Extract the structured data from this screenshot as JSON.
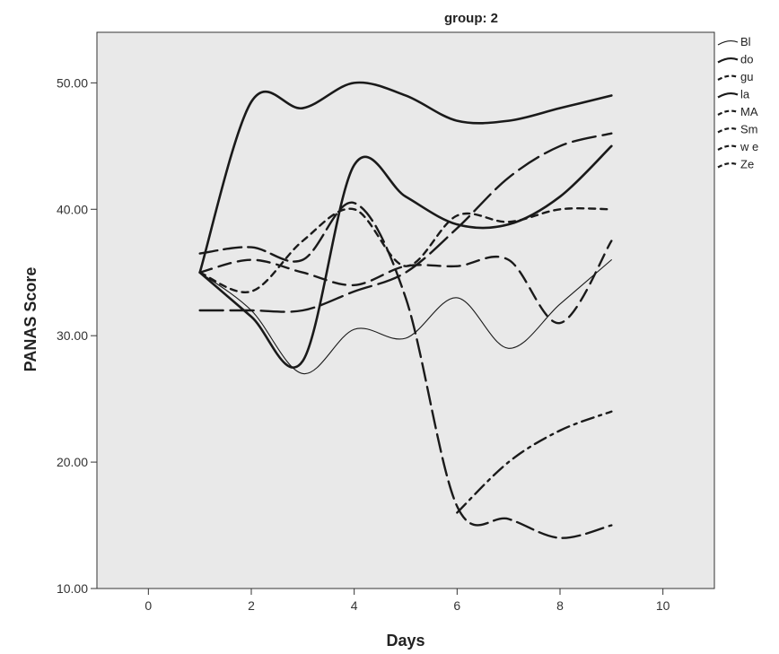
{
  "chart_data": {
    "type": "line",
    "title": "group: 2",
    "xlabel": "Days",
    "ylabel": "PANAS Score",
    "xlim": [
      -1,
      11
    ],
    "ylim": [
      10,
      54
    ],
    "xticks": [
      "0",
      "2",
      "4",
      "6",
      "8",
      "10"
    ],
    "yticks": [
      "10.00",
      "20.00",
      "30.00",
      "40.00",
      "50.00"
    ],
    "grid": false,
    "legend_position": "right",
    "background": "#e9e9e9",
    "series": [
      {
        "name": "Bl",
        "dash": "solid-thin",
        "x": [
          1,
          2,
          3,
          4,
          5,
          6,
          7,
          8,
          9
        ],
        "y": [
          35.0,
          32.0,
          27.0,
          30.5,
          29.8,
          33.0,
          29.0,
          32.5,
          36.0
        ]
      },
      {
        "name": "do",
        "dash": "solid",
        "x": [
          1,
          2,
          3,
          4,
          5,
          6,
          7,
          8,
          9
        ],
        "y": [
          35.0,
          48.5,
          48.0,
          50.0,
          49.0,
          47.0,
          47.0,
          48.0,
          49.0
        ]
      },
      {
        "name": "gu",
        "dash": "long-dash",
        "x": [
          1,
          2,
          3,
          4,
          5,
          6,
          7,
          8,
          9
        ],
        "y": [
          32.0,
          32.0,
          32.0,
          33.5,
          35.0,
          38.5,
          42.5,
          45.0,
          46.0
        ]
      },
      {
        "name": "la",
        "dash": "solid",
        "x": [
          1,
          2,
          3,
          4,
          5,
          6,
          7,
          8,
          9
        ],
        "y": [
          35.0,
          31.5,
          28.0,
          43.5,
          41.0,
          38.8,
          38.8,
          41.0,
          45.0
        ]
      },
      {
        "name": "MA",
        "dash": "short-dash",
        "x": [
          1,
          2,
          3,
          4,
          5,
          6,
          7,
          8,
          9
        ],
        "y": [
          35.0,
          33.5,
          37.5,
          40.0,
          35.5,
          39.5,
          39.0,
          40.0,
          40.0
        ]
      },
      {
        "name": "Sm",
        "dash": "dash",
        "x": [
          1,
          2,
          3,
          4,
          5,
          6,
          7,
          8,
          9
        ],
        "y": [
          35.0,
          36.0,
          35.0,
          34.0,
          35.5,
          35.5,
          36.0,
          31.0,
          37.5
        ]
      },
      {
        "name": "w e",
        "dash": "dash-dot",
        "x": [
          6,
          7,
          8,
          9
        ],
        "y": [
          16.0,
          20.0,
          22.5,
          24.0
        ]
      },
      {
        "name": "Ze",
        "dash": "dash-long",
        "x": [
          1,
          2,
          3,
          4,
          5,
          6,
          7,
          8,
          9
        ],
        "y": [
          36.5,
          37.0,
          36.0,
          40.5,
          33.0,
          16.5,
          15.5,
          14.0,
          15.0
        ]
      }
    ]
  }
}
